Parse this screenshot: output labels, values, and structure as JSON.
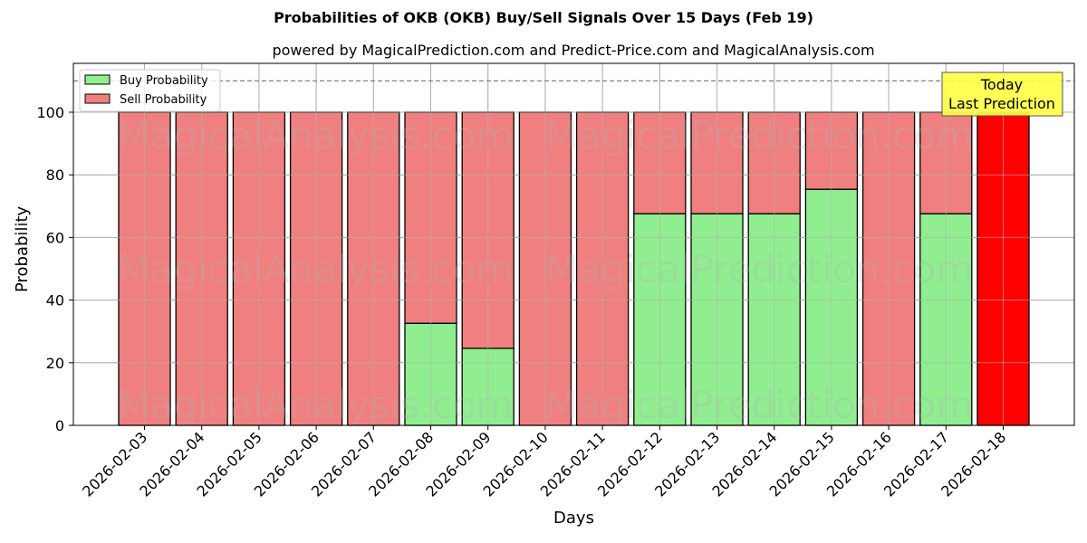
{
  "chart": {
    "title": "Probabilities of OKB (OKB) Buy/Sell Signals Over 15 Days (Feb 19)",
    "subtitle": "powered by MagicalPrediction.com and Predict-Price.com and MagicalAnalysis.com",
    "xlabel": "Days",
    "ylabel": "Probability",
    "legend": [
      {
        "label": "Buy Probability",
        "color": "#90ee90"
      },
      {
        "label": "Sell Probability",
        "color": "#f08080"
      }
    ],
    "annotation": {
      "line1": "Today",
      "line2": "Last Prediction",
      "bg": "#ffff44"
    },
    "watermarks": [
      "MagicalAnalysis.com",
      "MagicalPrediction.com"
    ],
    "colors": {
      "buy": "#90ee90",
      "sell": "#f08080",
      "today": "#ff0000",
      "grid": "#b0b0b0"
    }
  },
  "chart_data": {
    "type": "bar",
    "stacked": true,
    "title": "Probabilities of OKB (OKB) Buy/Sell Signals Over 15 Days (Feb 19)",
    "subtitle": "powered by MagicalPrediction.com and Predict-Price.com and MagicalAnalysis.com",
    "xlabel": "Days",
    "ylabel": "Probability",
    "ylim": [
      0,
      115
    ],
    "yticks": [
      0,
      20,
      40,
      60,
      80,
      100
    ],
    "grid": true,
    "legend_position": "upper left",
    "reference_line": {
      "y": 110,
      "style": "dashed",
      "color": "#808080"
    },
    "categories": [
      "2026-02-03",
      "2026-02-04",
      "2026-02-05",
      "2026-02-06",
      "2026-02-07",
      "2026-02-08",
      "2026-02-09",
      "2026-02-10",
      "2026-02-11",
      "2026-02-12",
      "2026-02-13",
      "2026-02-14",
      "2026-02-15",
      "2026-02-16",
      "2026-02-17",
      "2026-02-18"
    ],
    "series": [
      {
        "name": "Buy Probability",
        "values": [
          0,
          0,
          0,
          0,
          0,
          32.6,
          24.6,
          0,
          0,
          67.6,
          67.6,
          67.6,
          75.4,
          0,
          67.6,
          0
        ]
      },
      {
        "name": "Sell Probability",
        "values": [
          100,
          100,
          100,
          100,
          100,
          67.4,
          75.4,
          100,
          100,
          32.4,
          32.4,
          32.4,
          24.6,
          100,
          32.4,
          100
        ]
      }
    ],
    "highlight": {
      "category": "2026-02-18",
      "label": "Today\nLast Prediction",
      "color": "#ff0000"
    }
  }
}
